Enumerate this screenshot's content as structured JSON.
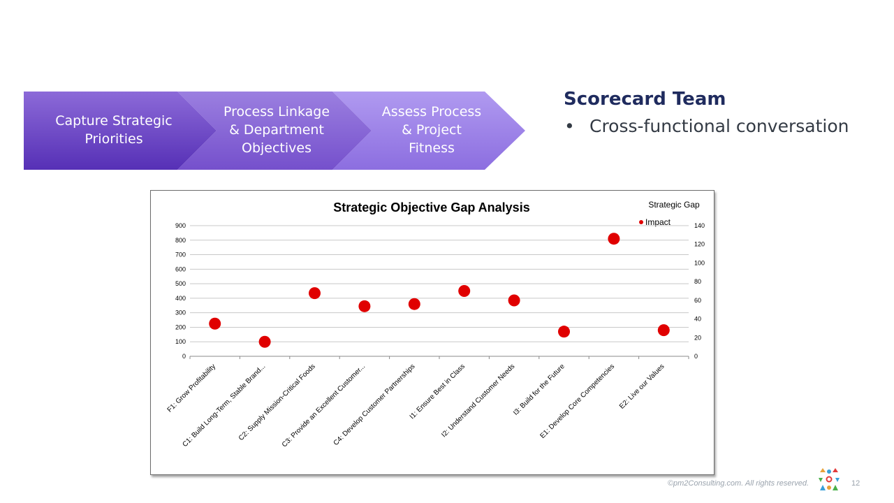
{
  "process_flow": {
    "steps": [
      {
        "label": "Capture Strategic\nPriorities"
      },
      {
        "label": "Process Linkage\n& Department\nObjectives"
      },
      {
        "label": "Assess Process\n& Project\nFitness"
      }
    ]
  },
  "team": {
    "title": "Scorecard Team",
    "bullet_char": "•",
    "bullet": "Cross-functional conversation"
  },
  "chart_data": {
    "type": "scatter",
    "title": "Strategic Objective Gap Analysis",
    "xlabel": "",
    "ylabel": "",
    "categories": [
      "F1: Grow Profitability",
      "C1: Build Long-Term, Stable Brand...",
      "C2: Supply Mission-Critical Foods",
      "C3: Provide an Excellent Customer...",
      "C4: Develop Customer Partnerships",
      "I1: Ensure Best in Class",
      "I2: Understand Customer Needs",
      "I3: Build for the Future",
      "E1: Develop Core Competencies",
      "E2: Live our Values"
    ],
    "series": [
      {
        "name": "Impact",
        "values": [
          225,
          100,
          435,
          345,
          360,
          450,
          385,
          170,
          810,
          180
        ],
        "color": "#e00000"
      }
    ],
    "y_axis_left": {
      "ticks": [
        "0",
        "100",
        "200",
        "300",
        "400",
        "500",
        "600",
        "700",
        "800",
        "900"
      ],
      "ylim": [
        0,
        900
      ]
    },
    "y_axis_right": {
      "ticks": [
        "0",
        "20",
        "40",
        "60",
        "80",
        "100",
        "120",
        "140"
      ],
      "ylim": [
        0,
        140
      ]
    },
    "legend": {
      "title": "Strategic Gap",
      "placement": "top-right"
    },
    "grid": true
  },
  "footer": {
    "copyright": "©pm2Consulting.com. All rights reserved.",
    "page_number": "12"
  },
  "colors": {
    "step_dark": "#5a33b8",
    "step_light": "#a48be6",
    "title_navy": "#1f2b5e"
  }
}
